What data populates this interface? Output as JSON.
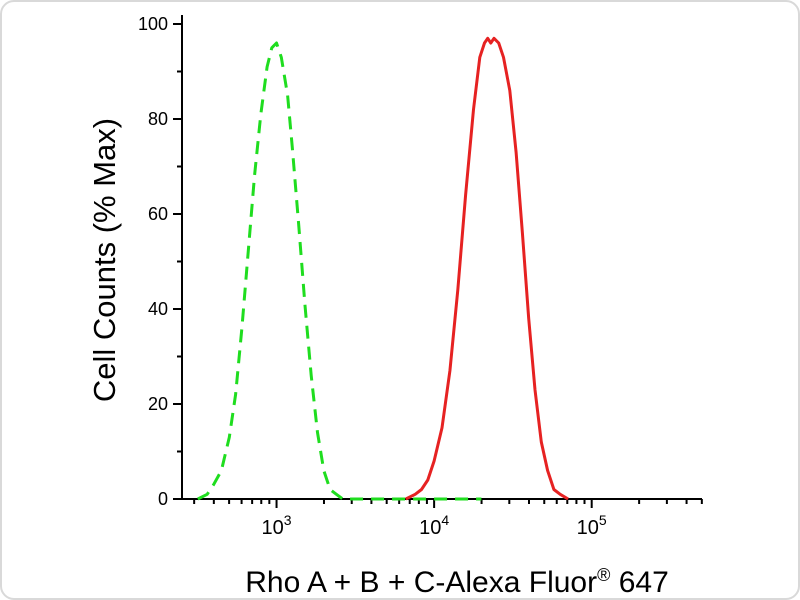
{
  "figure": {
    "background": "#ffffff",
    "border_color": "#d9d9d9",
    "axis_color": "#000000",
    "text_color": "#000000"
  },
  "chart_data": {
    "type": "line",
    "subtype": "flow-cytometry-histogram",
    "title": "",
    "ylabel": "Cell Counts (% Max)",
    "xlabel": "Rho A + B + C-Alexa Fluor® 647",
    "xlabel_main": "Rho A + B + C-Alexa Fluor",
    "xlabel_registered": "®",
    "xlabel_suffix": " 647",
    "x_scale": "log10",
    "xlim_log10": [
      2.4,
      5.7
    ],
    "ylim": [
      0,
      100
    ],
    "y_ticks": [
      0,
      20,
      40,
      60,
      80,
      100
    ],
    "y_minor_ticks": [
      10,
      30,
      50,
      70,
      90
    ],
    "x_major_ticks": [
      {
        "log10": 3,
        "base": "10",
        "exp": "3"
      },
      {
        "log10": 4,
        "base": "10",
        "exp": "4"
      },
      {
        "log10": 5,
        "base": "10",
        "exp": "5"
      }
    ],
    "x_minor_decades": [
      2,
      3,
      4,
      5
    ],
    "x_minor_tick_multipliers": [
      2,
      3,
      4,
      5,
      6,
      7,
      8,
      9
    ],
    "grid": false,
    "legend": "none",
    "series": [
      {
        "name": "green dashed peak",
        "style": "dashed",
        "color": "#1fdd1f",
        "stroke_width": 3,
        "dash": "13 8",
        "points": [
          [
            2.5,
            0
          ],
          [
            2.56,
            1
          ],
          [
            2.6,
            3
          ],
          [
            2.65,
            6
          ],
          [
            2.7,
            13
          ],
          [
            2.74,
            22
          ],
          [
            2.78,
            36
          ],
          [
            2.82,
            52
          ],
          [
            2.86,
            68
          ],
          [
            2.9,
            81
          ],
          [
            2.94,
            91
          ],
          [
            2.97,
            95
          ],
          [
            3.0,
            96
          ],
          [
            3.03,
            93
          ],
          [
            3.07,
            85
          ],
          [
            3.1,
            74
          ],
          [
            3.14,
            58
          ],
          [
            3.18,
            41
          ],
          [
            3.22,
            26
          ],
          [
            3.26,
            14
          ],
          [
            3.3,
            6
          ],
          [
            3.34,
            2
          ],
          [
            3.38,
            1
          ],
          [
            3.42,
            0
          ],
          [
            4.3,
            0
          ]
        ]
      },
      {
        "name": "red solid peak",
        "style": "solid",
        "color": "#e62222",
        "stroke_width": 3,
        "dash": "",
        "points": [
          [
            3.82,
            0
          ],
          [
            3.88,
            1
          ],
          [
            3.92,
            2
          ],
          [
            3.96,
            4
          ],
          [
            4.0,
            8
          ],
          [
            4.05,
            15
          ],
          [
            4.1,
            27
          ],
          [
            4.15,
            44
          ],
          [
            4.2,
            64
          ],
          [
            4.25,
            82
          ],
          [
            4.29,
            93
          ],
          [
            4.32,
            96
          ],
          [
            4.34,
            97
          ],
          [
            4.36,
            96
          ],
          [
            4.38,
            97
          ],
          [
            4.41,
            96
          ],
          [
            4.44,
            93
          ],
          [
            4.48,
            86
          ],
          [
            4.52,
            73
          ],
          [
            4.56,
            56
          ],
          [
            4.6,
            38
          ],
          [
            4.64,
            23
          ],
          [
            4.68,
            12
          ],
          [
            4.72,
            6
          ],
          [
            4.76,
            2
          ],
          [
            4.8,
            1
          ],
          [
            4.85,
            0
          ]
        ]
      }
    ]
  }
}
